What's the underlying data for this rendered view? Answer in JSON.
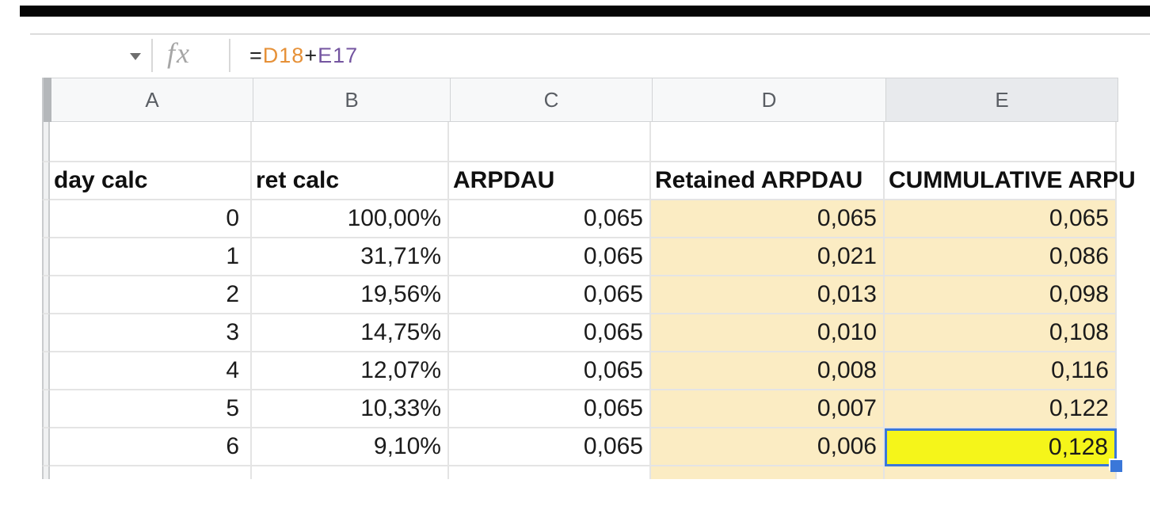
{
  "window": {
    "top_bar_color": "#060606",
    "background": "#ffffff"
  },
  "formula_bar": {
    "name_box_dropdown_icon": "chevron-down",
    "fx_label": "fx",
    "formula_value": "=D18+E17",
    "formula_parts": [
      {
        "text": "=",
        "color": "#222222"
      },
      {
        "text": "D18",
        "color": "#e69138"
      },
      {
        "text": "+",
        "color": "#222222"
      },
      {
        "text": "E17",
        "color": "#7455a0"
      }
    ]
  },
  "column_headers": {
    "labels": [
      "A",
      "B",
      "C",
      "D",
      "E"
    ],
    "selected": "E"
  },
  "table": {
    "header_row": [
      "day calc",
      "ret calc",
      "ARPDAU",
      "Retained ARPDAU",
      "CUMMULATIVE ARPU"
    ],
    "rows": [
      [
        "0",
        "100,00%",
        "0,065",
        "0,065",
        "0,065"
      ],
      [
        "1",
        "31,71%",
        "0,065",
        "0,021",
        "0,086"
      ],
      [
        "2",
        "19,56%",
        "0,065",
        "0,013",
        "0,098"
      ],
      [
        "3",
        "14,75%",
        "0,065",
        "0,010",
        "0,108"
      ],
      [
        "4",
        "12,07%",
        "0,065",
        "0,008",
        "0,116"
      ],
      [
        "5",
        "10,33%",
        "0,065",
        "0,007",
        "0,122"
      ],
      [
        "6",
        "9,10%",
        "0,065",
        "0,006",
        "0,128"
      ]
    ]
  },
  "selection": {
    "column": "E",
    "value": "0,128",
    "cell_fill_color": "#f5f51a",
    "border_color": "#3a77d9",
    "highlight_columns_bg": "#fbecc3"
  },
  "colors": {
    "col_header_bg": "#f7f8f9",
    "selected_col_header_bg": "#e8eaed",
    "gridline": "#e4e4e4",
    "header_text": "#5a5e64"
  }
}
